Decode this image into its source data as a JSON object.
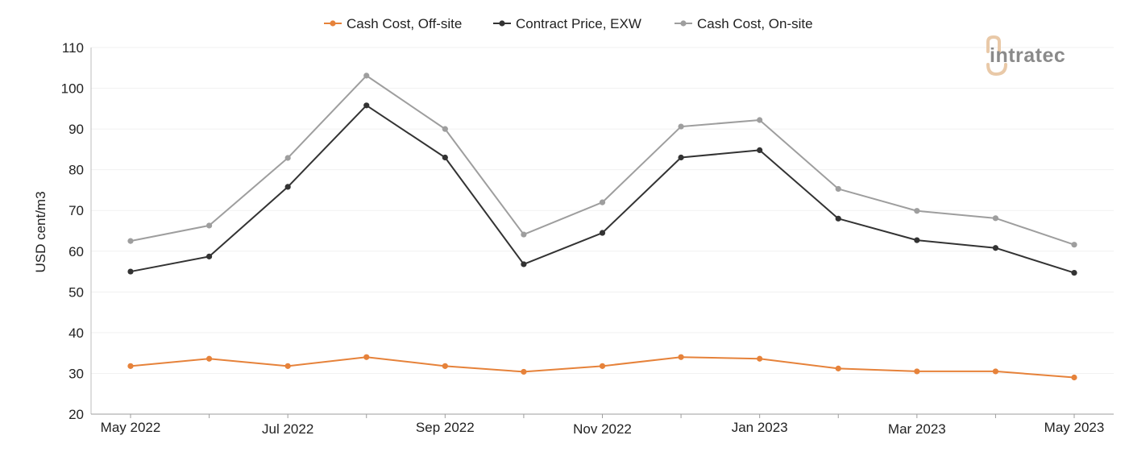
{
  "logo": {
    "text": "intratec",
    "mark_color": "#e9c9a8",
    "text_color": "#8a8a8a"
  },
  "chart_data": {
    "type": "line",
    "title": "",
    "xlabel": "",
    "ylabel": "USD cent/m3",
    "ylim": [
      20,
      110
    ],
    "yticks": [
      20,
      30,
      40,
      50,
      60,
      70,
      80,
      90,
      100,
      110
    ],
    "grid": true,
    "legend_position": "top",
    "x": [
      "May 2022",
      "Jun 2022",
      "Jul 2022",
      "Aug 2022",
      "Sep 2022",
      "Oct 2022",
      "Nov 2022",
      "Dec 2022",
      "Jan 2023",
      "Feb 2023",
      "Mar 2023",
      "Apr 2023",
      "May 2023"
    ],
    "x_tick_labels": [
      "May 2022",
      "",
      "Jul 2022",
      "",
      "Sep 2022",
      "",
      "Nov 2022",
      "",
      "Jan 2023",
      "",
      "Mar 2023",
      "",
      "May 2023"
    ],
    "series": [
      {
        "name": "Cash Cost, Off-site",
        "color": "#e6823a",
        "values": [
          31.8,
          33.6,
          31.8,
          34.0,
          31.8,
          30.4,
          31.8,
          34.0,
          33.6,
          31.2,
          30.5,
          30.5,
          29.0
        ]
      },
      {
        "name": "Contract Price, EXW",
        "color": "#333333",
        "values": [
          55.0,
          58.7,
          75.8,
          95.8,
          83.0,
          56.8,
          64.5,
          83.0,
          84.8,
          68.0,
          62.7,
          60.8,
          54.7
        ]
      },
      {
        "name": "Cash Cost, On-site",
        "color": "#9e9e9e",
        "values": [
          62.5,
          66.3,
          82.9,
          103.1,
          90.0,
          64.1,
          72.0,
          90.6,
          92.2,
          75.3,
          69.9,
          68.1,
          61.6
        ]
      }
    ]
  }
}
